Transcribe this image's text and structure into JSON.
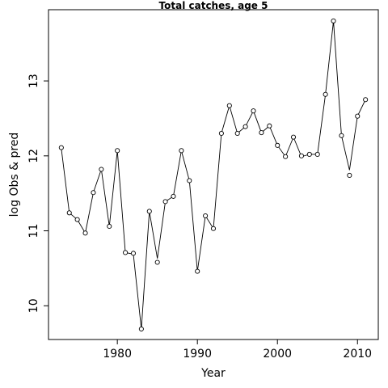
{
  "chart_data": {
    "type": "line",
    "title": "Total catches, age 5",
    "xlabel": "Year",
    "ylabel": "log Obs & pred",
    "xlim": [
      1971.4,
      2012.6
    ],
    "ylim": [
      9.55,
      13.95
    ],
    "xticks": [
      1980,
      1990,
      2000,
      2010
    ],
    "yticks": [
      10,
      11,
      12,
      13
    ],
    "grid": false,
    "legend": "none",
    "series": [
      {
        "role": "observed",
        "marker": "open-circle",
        "x": [
          1973,
          1974,
          1975,
          1976,
          1977,
          1978,
          1979,
          1980,
          1981,
          1982,
          1983,
          1984,
          1985,
          1986,
          1987,
          1988,
          1989,
          1990,
          1991,
          1992,
          1993,
          1994,
          1995,
          1996,
          1997,
          1998,
          1999,
          2000,
          2001,
          2002,
          2003,
          2004,
          2005,
          2006,
          2007,
          2008,
          2009,
          2010,
          2011
        ],
        "values": [
          12.11,
          11.24,
          11.15,
          10.97,
          11.51,
          11.82,
          11.06,
          12.07,
          10.71,
          10.7,
          9.69,
          11.26,
          10.58,
          11.39,
          11.46,
          12.07,
          11.67,
          10.46,
          11.2,
          11.03,
          12.3,
          12.67,
          12.3,
          12.39,
          12.6,
          12.31,
          12.4,
          12.14,
          11.99,
          12.25,
          12.0,
          12.02,
          12.02,
          12.82,
          13.8,
          12.27,
          11.74,
          12.53,
          12.75
        ]
      },
      {
        "role": "predicted",
        "marker": "line",
        "x": [
          1973,
          1974,
          1975,
          1976,
          1977,
          1978,
          1979,
          1980,
          1981,
          1982,
          1983,
          1984,
          1985,
          1986,
          1987,
          1988,
          1989,
          1990,
          1991,
          1992,
          1993,
          1994,
          1995,
          1996,
          1997,
          1998,
          1999,
          2000,
          2001,
          2002,
          2003,
          2004,
          2005,
          2006,
          2007,
          2008,
          2009,
          2010,
          2011
        ],
        "values": [
          12.1,
          11.24,
          11.15,
          10.97,
          11.51,
          11.82,
          11.06,
          12.07,
          10.71,
          10.69,
          9.69,
          11.26,
          10.63,
          11.39,
          11.46,
          12.07,
          11.67,
          10.46,
          11.2,
          11.03,
          12.3,
          12.67,
          12.3,
          12.39,
          12.6,
          12.31,
          12.4,
          12.14,
          11.99,
          12.25,
          11.99,
          12.02,
          12.02,
          12.82,
          13.8,
          12.27,
          11.81,
          12.53,
          12.75
        ]
      }
    ],
    "colors": {
      "line": "#000000",
      "marker": "#000000",
      "frame": "#000000"
    }
  }
}
